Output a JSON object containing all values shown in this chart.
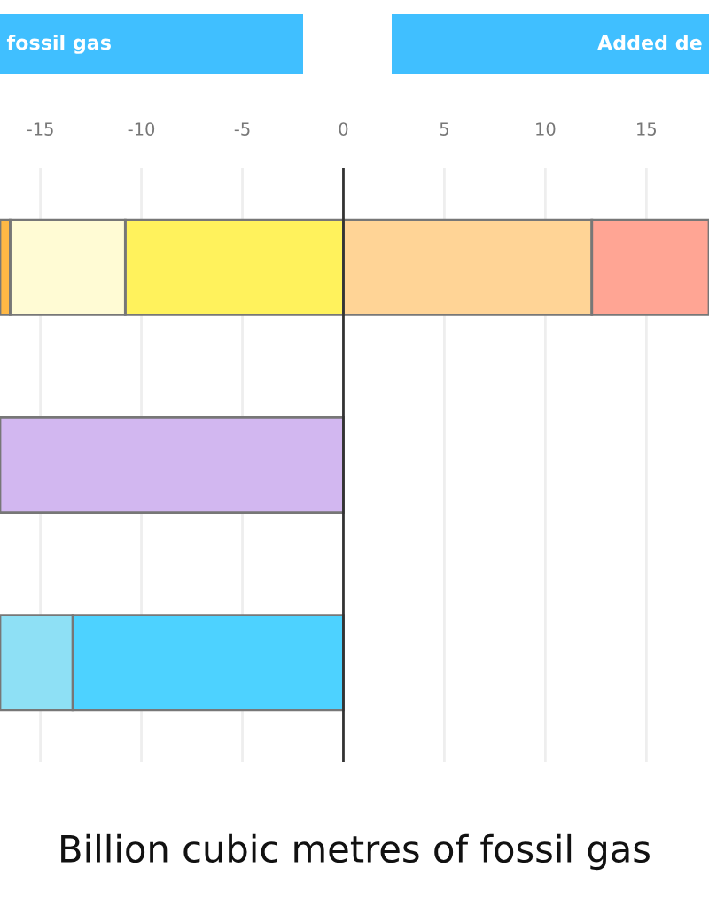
{
  "chart_data": {
    "type": "bar",
    "orientation": "horizontal",
    "stacked": true,
    "categories": [
      null,
      null,
      null
    ],
    "series": [
      {
        "color": "#fff25c",
        "values": [
          -10.8,
          null,
          null
        ]
      },
      {
        "color": "#fffbd4",
        "values": [
          -5.7,
          null,
          null
        ]
      },
      {
        "color": "#ffb845",
        "values": [
          -0.5,
          null,
          null
        ]
      },
      {
        "color": "#ffd496",
        "values": [
          12.3,
          null,
          null
        ]
      },
      {
        "color": "#ffa594",
        "values": [
          5.8,
          null,
          null
        ]
      },
      {
        "color": "#d2b7f0",
        "values": [
          null,
          -17.0,
          null
        ]
      },
      {
        "color": "#4dd2ff",
        "values": [
          null,
          null,
          -13.4
        ]
      },
      {
        "color": "#8ee0f5",
        "values": [
          null,
          null,
          -3.6
        ]
      }
    ],
    "xlim": [
      -17.0,
      18.1
    ],
    "xticks": [
      -15,
      -10,
      -5,
      0,
      5,
      10,
      15
    ],
    "xlabel": "Billion cubic metres of fossil gas",
    "annotations": [
      "fossil gas",
      "Added de"
    ],
    "grid": "x",
    "tick_labels": "x",
    "legend": false
  }
}
